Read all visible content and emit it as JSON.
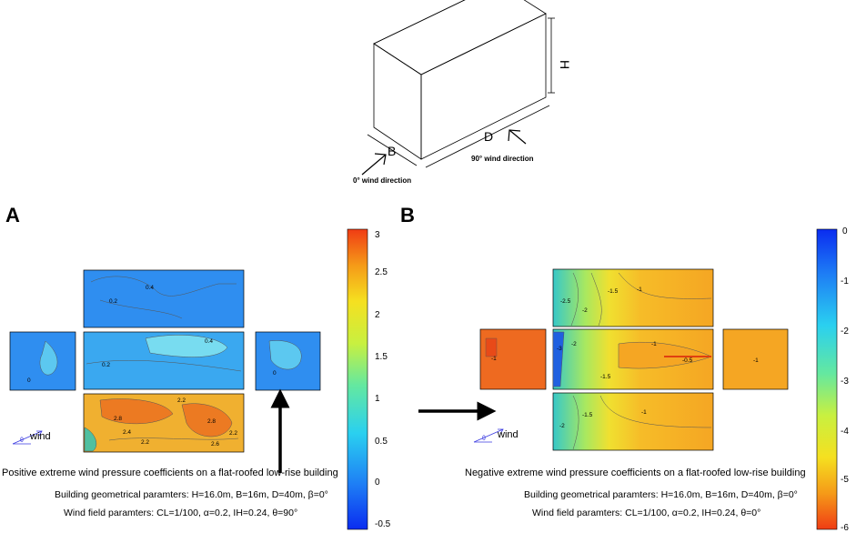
{
  "building": {
    "labels": {
      "h": "H",
      "b": "B",
      "d": "D"
    },
    "wind0_label": "0° wind direction",
    "wind90_label": "90° wind direction"
  },
  "panel_a": {
    "letter": "A",
    "caption_title": "Positive extreme wind pressure coefficients on a flat-roofed low-rise building",
    "geom_params": "Building geometrical paramters: H=16.0m, B=16m, D=40m, β=0°",
    "wind_params": "Wind field paramters: CL=1/100, α=0.2, IH=0.24, θ=90°",
    "wind_label": "wind",
    "theta_label": "θ",
    "colorbar_ticks": [
      "3",
      "2.5",
      "2",
      "1.5",
      "1",
      "0.5",
      "0",
      "-0.5"
    ],
    "contour_labels": [
      "0.4",
      "0.2",
      "0",
      "0.4",
      "0.2",
      "0",
      "2.2",
      "2.8",
      "2.4",
      "2.2",
      "2.8",
      "2.6",
      "2.2"
    ]
  },
  "panel_b": {
    "letter": "B",
    "caption_title": "Negative extreme wind pressure coefficients on a flat-roofed low-rise building",
    "geom_params": "Building geometrical paramters: H=16.0m, B=16m, D=40m, β=0°",
    "wind_params": "Wind field paramters: CL=1/100, α=0.2, IH=0.24, θ=0°",
    "wind_label": "wind",
    "theta_label": "θ",
    "colorbar_ticks": [
      "0",
      "-1",
      "-2",
      "-3",
      "-4",
      "-5",
      "-6"
    ],
    "contour_labels": [
      "-2.5",
      "-2",
      "-1.5",
      "-1",
      "-3",
      "-2",
      "-1.5",
      "-1",
      "-0.5",
      "-1",
      "-2",
      "-1.5",
      "-1",
      "-1"
    ]
  }
}
